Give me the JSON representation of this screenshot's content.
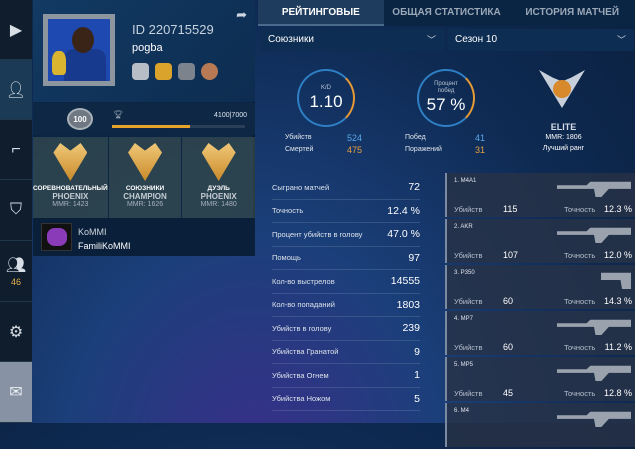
{
  "sidebar": {
    "items": [
      {
        "icon": "play-icon"
      },
      {
        "icon": "user-icon",
        "active": true
      },
      {
        "icon": "pistol-icon"
      },
      {
        "icon": "shield-icon"
      },
      {
        "icon": "friends-icon",
        "count": "46"
      },
      {
        "icon": "gear-icon"
      },
      {
        "icon": "mail-icon"
      }
    ]
  },
  "profile": {
    "id": "ID 220715529",
    "name": "pogba",
    "level": "100",
    "xp_text": "4100|7000",
    "xp_progress": 0.586,
    "ranks": [
      {
        "mode": "СОРЕВНОВАТЕЛЬНЫЙ",
        "rank": "PHOENIX",
        "mmr": "MMR: 1423"
      },
      {
        "mode": "СОЮЗНИКИ",
        "rank": "CHAMPION",
        "mmr": "MMR: 1626"
      },
      {
        "mode": "ДУЭЛЬ",
        "rank": "PHOENIX",
        "mmr": "MMR: 1480"
      }
    ],
    "clan": {
      "tag": "KoMMI",
      "name": "FamiliKoMMI"
    }
  },
  "tabs": [
    {
      "label": "РЕЙТИНГОВЫЕ",
      "active": true
    },
    {
      "label": "ОБЩАЯ СТАТИСТИКА"
    },
    {
      "label": "ИСТОРИЯ МАТЧЕЙ"
    }
  ],
  "filters": {
    "mode": "Союзники",
    "season": "Сезон 10"
  },
  "summary": {
    "kd_label": "K/D",
    "kd": "1.10",
    "kills_label": "Убийств",
    "kills": "524",
    "deaths_label": "Смертей",
    "deaths": "475",
    "winrate_label": "Процент побед",
    "winrate": "57 %",
    "wins_label": "Побед",
    "wins": "41",
    "losses_label": "Поражений",
    "losses": "31",
    "best_rank": "ELITE",
    "best_mmr": "MMR: 1806",
    "best_label": "Лучший ранг"
  },
  "stats": [
    {
      "label": "Сыграно матчей",
      "value": "72"
    },
    {
      "label": "Точность",
      "value": "12.4 %"
    },
    {
      "label": "Процент убийств в голову",
      "value": "47.0 %"
    },
    {
      "label": "Помощь",
      "value": "97"
    },
    {
      "label": "Кол-во выстрелов",
      "value": "14555"
    },
    {
      "label": "Кол-во попаданий",
      "value": "1803"
    },
    {
      "label": "Убийств в голову",
      "value": "239"
    },
    {
      "label": "Убийства Гранатой",
      "value": "9"
    },
    {
      "label": "Убийства Огнем",
      "value": "1"
    },
    {
      "label": "Убийства Ножом",
      "value": "5"
    }
  ],
  "weapon_labels": {
    "kills": "Убийств",
    "accuracy": "Точность"
  },
  "weapons": [
    {
      "name": "1. M4A1",
      "kills": "115",
      "accuracy": "12.3 %"
    },
    {
      "name": "2. AKR",
      "kills": "107",
      "accuracy": "12.0 %"
    },
    {
      "name": "3. P350",
      "kills": "60",
      "accuracy": "14.3 %"
    },
    {
      "name": "4. MP7",
      "kills": "60",
      "accuracy": "11.2 %"
    },
    {
      "name": "5. MP5",
      "kills": "45",
      "accuracy": "12.8 %"
    },
    {
      "name": "6. M4",
      "kills": "",
      "accuracy": ""
    }
  ]
}
